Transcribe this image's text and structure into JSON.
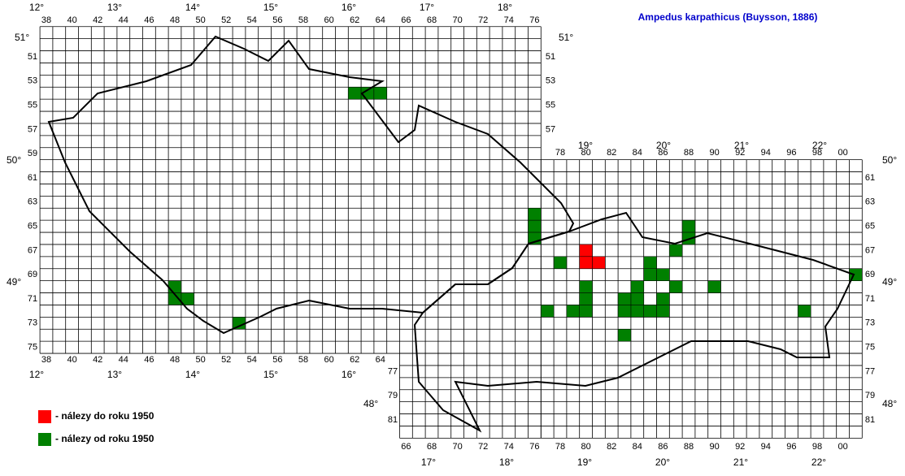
{
  "title": "Ampedus karpathicus (Buysson, 1886)",
  "grid": {
    "cz_columns": [
      38,
      40,
      42,
      44,
      46,
      48,
      50,
      52,
      54,
      56,
      58,
      60,
      62,
      64,
      66,
      68,
      70,
      72,
      74,
      76
    ],
    "cz_columns_bottom": [
      38,
      40,
      42,
      44,
      46,
      48,
      50,
      52,
      54,
      56,
      58,
      60,
      62,
      64
    ],
    "cz_rows": [
      51,
      53,
      55,
      57,
      59,
      61,
      63,
      65,
      67,
      69,
      71,
      73,
      75
    ],
    "cz_rows_right": [
      51,
      53,
      55,
      57
    ],
    "sk_columns_top": [
      78,
      80,
      82,
      84,
      86,
      88,
      90,
      92,
      94,
      96,
      98,
      {
        "value": 100,
        "label": "00"
      }
    ],
    "sk_columns_bottom": [
      66,
      68,
      70,
      72,
      74,
      76,
      78,
      80,
      82,
      84,
      86,
      88,
      90,
      92,
      94,
      96,
      98,
      {
        "value": 100,
        "label": "00"
      }
    ],
    "sk_rows_right": [
      61,
      63,
      65,
      67,
      69,
      71,
      73,
      75,
      77,
      79,
      81
    ],
    "sk_rows_left": [
      77,
      79,
      81
    ]
  },
  "longitudes_top": [
    "12°",
    "13°",
    "14°",
    "15°",
    "16°",
    "17°",
    "18°"
  ],
  "longitudes_bottom": [
    "12°",
    "13°",
    "14°",
    "15°",
    "16°"
  ],
  "longitudes_sk_top": [
    "19°",
    "20°",
    "21°",
    "22°"
  ],
  "longitudes_sk_bottom": [
    "17°",
    "18°",
    "19°",
    "20°",
    "21°",
    "22°"
  ],
  "latitudes_left": [
    "51°",
    "50°",
    "49°"
  ],
  "latitude_right_cz": "51°",
  "latitudes_right_sk": [
    "50°",
    "49°",
    "48°"
  ],
  "latitude_left_sk": "48°",
  "records": {
    "before_1950": {
      "label": "- nálezy do roku 1950",
      "color": "#ff0000",
      "cells": [
        [
          80,
          67
        ],
        [
          80,
          68
        ],
        [
          81,
          68
        ]
      ]
    },
    "since_1950": {
      "label": "- nálezy od roku 1950",
      "color": "#008000",
      "cells": [
        [
          62,
          54
        ],
        [
          63,
          54
        ],
        [
          64,
          54
        ],
        [
          48,
          70
        ],
        [
          48,
          71
        ],
        [
          49,
          71
        ],
        [
          53,
          73
        ],
        [
          76,
          64
        ],
        [
          76,
          65
        ],
        [
          76,
          66
        ],
        [
          78,
          68
        ],
        [
          80,
          70
        ],
        [
          80,
          71
        ],
        [
          80,
          72
        ],
        [
          79,
          72
        ],
        [
          77,
          72
        ],
        [
          84,
          70
        ],
        [
          84,
          71
        ],
        [
          84,
          72
        ],
        [
          83,
          71
        ],
        [
          83,
          72
        ],
        [
          85,
          72
        ],
        [
          86,
          71
        ],
        [
          86,
          72
        ],
        [
          83,
          74
        ],
        [
          85,
          68
        ],
        [
          85,
          69
        ],
        [
          86,
          69
        ],
        [
          87,
          67
        ],
        [
          88,
          65
        ],
        [
          88,
          66
        ],
        [
          87,
          70
        ],
        [
          90,
          70
        ],
        [
          97,
          72
        ],
        [
          101,
          69
        ]
      ]
    }
  }
}
